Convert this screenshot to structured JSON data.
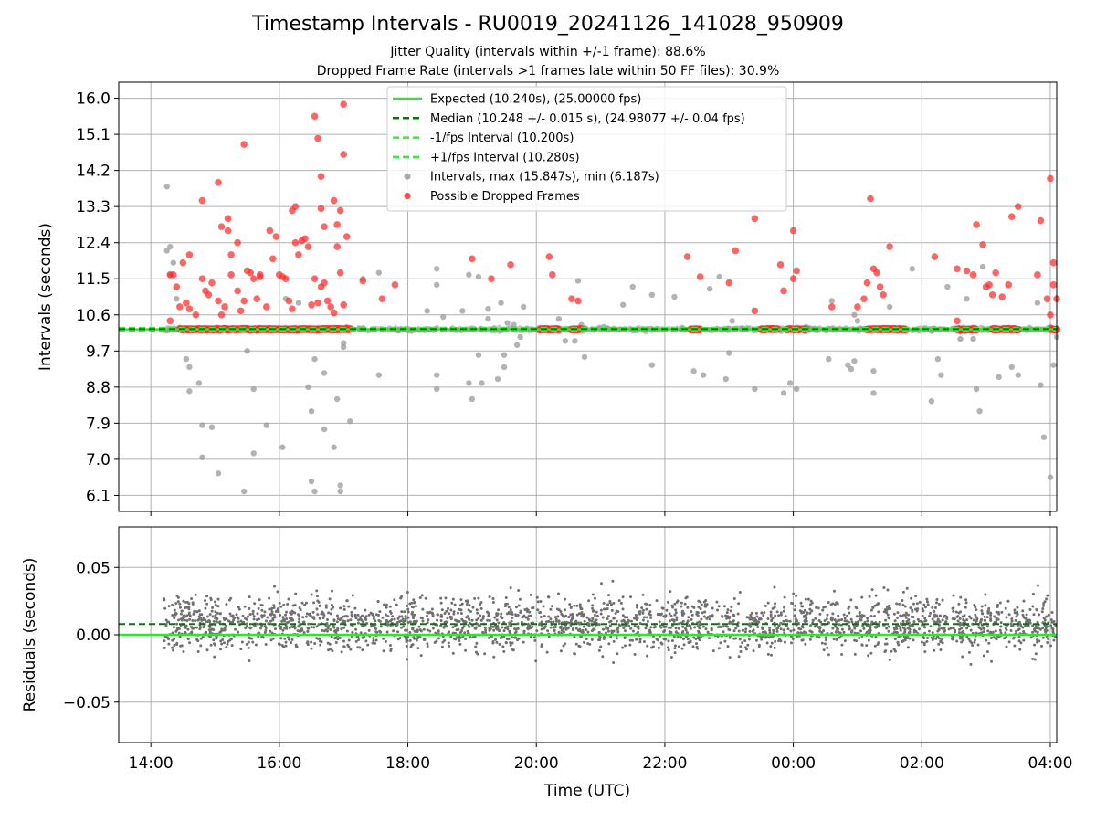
{
  "title": "Timestamp Intervals - RU0019_20241126_141028_950909",
  "subtitle_lines": [
    "Jitter Quality (intervals within +/-1 frame): 88.6%",
    "Dropped Frame Rate (intervals >1 frames late within 50 FF files): 30.9%"
  ],
  "colors": {
    "expected": "#22ee22",
    "median": "#107010",
    "interval_band": "#33ee33",
    "intervals": "#999999",
    "dropped": "#ff2a2a",
    "residuals": "#707070",
    "grid": "#b0b0b0"
  },
  "chart_data": [
    {
      "type": "scatter",
      "name": "intervals-panel",
      "ylabel": "Intervals (seconds)",
      "xlabel": "",
      "x_unit": "hours since 00:00 UTC 2024-11-26 (axis shows clock time)",
      "xlim": [
        13.5,
        28.1
      ],
      "ylim": [
        5.7,
        16.4
      ],
      "yticks": [
        "6.1",
        "7.0",
        "7.9",
        "8.8",
        "9.7",
        "10.6",
        "11.5",
        "12.4",
        "13.3",
        "14.2",
        "15.1",
        "16.0"
      ],
      "grid": true,
      "legend_position": "upper-center",
      "legend": [
        {
          "label": "Expected (10.240s), (25.00000 fps)",
          "style": "solid-line",
          "color": "#22ee22"
        },
        {
          "label": "Median (10.248 +/- 0.015 s), (24.98077 +/- 0.04 fps)",
          "style": "dashed-line",
          "color": "#107010"
        },
        {
          "label": "-1/fps Interval (10.200s)",
          "style": "dashed-line",
          "color": "#33ee33"
        },
        {
          "label": "+1/fps Interval (10.280s)",
          "style": "dashed-line",
          "color": "#33ee33"
        },
        {
          "label": "Intervals, max (15.847s), min (6.187s)",
          "style": "marker",
          "color": "#999999"
        },
        {
          "label": "Possible Dropped Frames",
          "style": "marker",
          "color": "#ff2a2a"
        }
      ],
      "lines": {
        "expected": 10.24,
        "median": 10.248,
        "minus_fps": 10.2,
        "plus_fps": 10.28
      },
      "dropped_frames": [
        [
          14.3,
          11.6
        ],
        [
          14.35,
          11.6
        ],
        [
          14.4,
          11.3
        ],
        [
          14.45,
          10.8
        ],
        [
          14.5,
          11.9
        ],
        [
          14.55,
          10.9
        ],
        [
          14.6,
          10.75
        ],
        [
          14.7,
          10.6
        ],
        [
          14.8,
          13.45
        ],
        [
          14.8,
          11.5
        ],
        [
          14.85,
          11.2
        ],
        [
          14.9,
          11.1
        ],
        [
          14.95,
          11.4
        ],
        [
          15.05,
          10.95
        ],
        [
          15.1,
          10.6
        ],
        [
          15.15,
          10.8
        ],
        [
          15.2,
          12.7
        ],
        [
          15.1,
          12.8
        ],
        [
          15.25,
          11.6
        ],
        [
          15.35,
          11.2
        ],
        [
          15.4,
          10.7
        ],
        [
          15.45,
          10.95
        ],
        [
          15.5,
          11.7
        ],
        [
          15.55,
          11.65
        ],
        [
          15.6,
          11.5
        ],
        [
          15.65,
          11.0
        ],
        [
          15.7,
          11.6
        ],
        [
          15.8,
          10.8
        ],
        [
          15.85,
          12.7
        ],
        [
          15.9,
          12.0
        ],
        [
          15.95,
          12.55
        ],
        [
          16.0,
          11.6
        ],
        [
          16.05,
          11.55
        ],
        [
          16.1,
          11.5
        ],
        [
          16.15,
          10.95
        ],
        [
          16.2,
          10.75
        ],
        [
          16.25,
          12.4
        ],
        [
          16.3,
          12.1
        ],
        [
          16.35,
          12.45
        ],
        [
          16.4,
          12.5
        ],
        [
          16.45,
          12.3
        ],
        [
          16.5,
          10.85
        ],
        [
          16.55,
          11.5
        ],
        [
          16.6,
          10.9
        ],
        [
          16.65,
          11.3
        ],
        [
          16.7,
          11.4
        ],
        [
          16.75,
          10.95
        ],
        [
          16.8,
          10.8
        ],
        [
          16.85,
          10.65
        ],
        [
          16.9,
          12.85
        ],
        [
          16.95,
          13.2
        ],
        [
          17.0,
          10.85
        ],
        [
          16.55,
          15.55
        ],
        [
          16.6,
          15.0
        ],
        [
          16.65,
          14.05
        ],
        [
          17.0,
          15.85
        ],
        [
          17.0,
          14.6
        ],
        [
          15.45,
          14.85
        ],
        [
          15.05,
          13.9
        ],
        [
          15.25,
          12.1
        ],
        [
          15.35,
          12.4
        ],
        [
          15.7,
          11.55
        ],
        [
          16.2,
          13.2
        ],
        [
          16.65,
          13.25
        ],
        [
          16.85,
          13.45
        ],
        [
          16.9,
          12.3
        ],
        [
          17.05,
          12.55
        ],
        [
          16.95,
          11.65
        ],
        [
          14.3,
          10.45
        ],
        [
          14.6,
          12.1
        ],
        [
          15.2,
          13.0
        ],
        [
          16.25,
          13.3
        ],
        [
          16.7,
          12.8
        ],
        [
          17.3,
          11.45
        ],
        [
          17.6,
          11.0
        ],
        [
          17.8,
          11.35
        ],
        [
          19.0,
          12.0
        ],
        [
          19.3,
          11.5
        ],
        [
          19.6,
          11.85
        ],
        [
          20.2,
          12.05
        ],
        [
          20.25,
          11.6
        ],
        [
          20.55,
          11.0
        ],
        [
          20.65,
          10.95
        ],
        [
          22.35,
          12.05
        ],
        [
          22.55,
          11.55
        ],
        [
          23.0,
          11.4
        ],
        [
          23.1,
          12.2
        ],
        [
          23.4,
          13.0
        ],
        [
          23.4,
          10.7
        ],
        [
          23.8,
          11.85
        ],
        [
          23.85,
          11.2
        ],
        [
          24.0,
          11.5
        ],
        [
          24.0,
          12.7
        ],
        [
          24.05,
          11.7
        ],
        [
          24.6,
          10.8
        ],
        [
          25.0,
          10.8
        ],
        [
          25.1,
          11.0
        ],
        [
          25.15,
          11.4
        ],
        [
          25.25,
          11.75
        ],
        [
          25.3,
          11.65
        ],
        [
          25.35,
          11.3
        ],
        [
          25.4,
          11.1
        ],
        [
          25.5,
          12.3
        ],
        [
          25.2,
          13.5
        ],
        [
          26.2,
          12.05
        ],
        [
          26.55,
          10.45
        ],
        [
          26.6,
          10.2
        ],
        [
          26.55,
          11.75
        ],
        [
          26.7,
          11.7
        ],
        [
          26.8,
          11.6
        ],
        [
          26.95,
          12.35
        ],
        [
          26.85,
          12.85
        ],
        [
          27.0,
          11.3
        ],
        [
          27.05,
          11.35
        ],
        [
          27.1,
          11.1
        ],
        [
          27.15,
          11.65
        ],
        [
          27.25,
          11.05
        ],
        [
          27.35,
          11.35
        ],
        [
          27.4,
          13.05
        ],
        [
          27.5,
          13.3
        ],
        [
          27.8,
          11.6
        ],
        [
          27.95,
          11.0
        ],
        [
          28.0,
          10.6
        ],
        [
          28.05,
          11.35
        ],
        [
          28.1,
          11.0
        ],
        [
          28.0,
          14.0
        ],
        [
          28.05,
          11.9
        ],
        [
          27.85,
          12.95
        ]
      ],
      "dropped_baseline_segments": [
        [
          14.45,
          17.1
        ],
        [
          20.05,
          20.35
        ],
        [
          20.55,
          20.7
        ],
        [
          22.4,
          22.55
        ],
        [
          23.5,
          23.75
        ],
        [
          23.9,
          24.1
        ],
        [
          24.15,
          24.2
        ],
        [
          25.15,
          25.75
        ],
        [
          26.55,
          26.85
        ],
        [
          27.1,
          27.2
        ],
        [
          27.25,
          27.5
        ],
        [
          28.0,
          28.1
        ]
      ],
      "dropped_baseline_value": 10.24,
      "intervals_outliers": [
        [
          14.25,
          13.8
        ],
        [
          14.25,
          12.2
        ],
        [
          14.3,
          12.3
        ],
        [
          14.35,
          11.9
        ],
        [
          14.3,
          11.6
        ],
        [
          14.4,
          11.0
        ],
        [
          14.55,
          9.5
        ],
        [
          14.6,
          9.3
        ],
        [
          14.6,
          8.7
        ],
        [
          14.75,
          8.9
        ],
        [
          14.8,
          7.85
        ],
        [
          14.8,
          7.05
        ],
        [
          14.95,
          7.8
        ],
        [
          15.05,
          6.65
        ],
        [
          15.45,
          6.2
        ],
        [
          15.5,
          9.7
        ],
        [
          15.6,
          8.75
        ],
        [
          15.6,
          7.15
        ],
        [
          15.8,
          7.85
        ],
        [
          16.05,
          7.3
        ],
        [
          16.1,
          11.0
        ],
        [
          16.3,
          10.9
        ],
        [
          16.45,
          8.8
        ],
        [
          16.5,
          8.2
        ],
        [
          16.5,
          6.45
        ],
        [
          16.55,
          6.2
        ],
        [
          16.55,
          9.5
        ],
        [
          16.7,
          9.15
        ],
        [
          16.7,
          7.75
        ],
        [
          16.85,
          7.3
        ],
        [
          16.9,
          8.5
        ],
        [
          16.95,
          6.35
        ],
        [
          16.95,
          6.2
        ],
        [
          17.0,
          9.9
        ],
        [
          17.0,
          9.8
        ],
        [
          17.1,
          7.95
        ],
        [
          17.3,
          11.5
        ],
        [
          17.55,
          11.65
        ],
        [
          17.55,
          9.1
        ],
        [
          18.3,
          10.7
        ],
        [
          18.45,
          11.75
        ],
        [
          18.45,
          11.35
        ],
        [
          18.45,
          9.1
        ],
        [
          18.45,
          8.75
        ],
        [
          18.55,
          10.55
        ],
        [
          18.85,
          10.7
        ],
        [
          18.95,
          11.6
        ],
        [
          18.95,
          8.9
        ],
        [
          19.0,
          8.5
        ],
        [
          19.1,
          11.55
        ],
        [
          19.1,
          9.6
        ],
        [
          19.15,
          8.9
        ],
        [
          19.25,
          10.75
        ],
        [
          19.25,
          10.5
        ],
        [
          19.4,
          9.0
        ],
        [
          19.5,
          9.6
        ],
        [
          19.5,
          9.3
        ],
        [
          19.45,
          10.9
        ],
        [
          19.55,
          10.4
        ],
        [
          19.65,
          10.35
        ],
        [
          19.7,
          9.85
        ],
        [
          19.75,
          10.05
        ],
        [
          19.8,
          10.8
        ],
        [
          20.35,
          10.5
        ],
        [
          20.45,
          9.95
        ],
        [
          20.6,
          9.95
        ],
        [
          20.65,
          11.45
        ],
        [
          20.7,
          10.35
        ],
        [
          20.75,
          9.55
        ],
        [
          21.05,
          10.3
        ],
        [
          21.35,
          10.85
        ],
        [
          21.5,
          11.3
        ],
        [
          21.8,
          11.1
        ],
        [
          21.8,
          9.35
        ],
        [
          22.15,
          11.05
        ],
        [
          22.45,
          10.2
        ],
        [
          22.45,
          9.2
        ],
        [
          22.6,
          9.1
        ],
        [
          22.7,
          11.25
        ],
        [
          22.85,
          11.55
        ],
        [
          22.95,
          9.0
        ],
        [
          23.0,
          9.65
        ],
        [
          23.05,
          10.45
        ],
        [
          23.4,
          8.75
        ],
        [
          23.85,
          8.65
        ],
        [
          23.95,
          8.9
        ],
        [
          24.05,
          8.75
        ],
        [
          24.2,
          10.3
        ],
        [
          24.55,
          9.5
        ],
        [
          24.6,
          10.95
        ],
        [
          24.85,
          9.35
        ],
        [
          24.9,
          9.25
        ],
        [
          24.95,
          9.45
        ],
        [
          24.95,
          10.6
        ],
        [
          25.0,
          10.45
        ],
        [
          25.25,
          9.2
        ],
        [
          25.25,
          8.65
        ],
        [
          25.5,
          10.8
        ],
        [
          25.85,
          11.75
        ],
        [
          26.15,
          8.45
        ],
        [
          26.15,
          10.2
        ],
        [
          26.25,
          9.5
        ],
        [
          26.3,
          9.1
        ],
        [
          26.4,
          11.3
        ],
        [
          26.6,
          10.0
        ],
        [
          26.7,
          11.0
        ],
        [
          26.8,
          10.0
        ],
        [
          26.85,
          8.75
        ],
        [
          26.9,
          8.2
        ],
        [
          26.95,
          11.8
        ],
        [
          27.2,
          9.05
        ],
        [
          27.4,
          9.3
        ],
        [
          27.5,
          9.1
        ],
        [
          27.8,
          10.9
        ],
        [
          27.85,
          8.85
        ],
        [
          27.9,
          7.55
        ],
        [
          28.0,
          6.55
        ],
        [
          28.05,
          9.35
        ],
        [
          28.0,
          10.3
        ],
        [
          28.1,
          10.05
        ]
      ],
      "intervals_band_x": [
        14.2,
        28.1
      ]
    },
    {
      "type": "scatter",
      "name": "residuals-panel",
      "ylabel": "Residuals (seconds)",
      "xlabel": "Time (UTC)",
      "xlim": [
        13.5,
        28.1
      ],
      "ylim": [
        -0.08,
        0.08
      ],
      "yticks": [
        "−0.05",
        "0.00",
        "0.05"
      ],
      "ytick_values": [
        -0.05,
        0.0,
        0.05
      ],
      "xticks": [
        "14:00",
        "16:00",
        "18:00",
        "20:00",
        "22:00",
        "00:00",
        "02:00",
        "04:00"
      ],
      "xtick_values": [
        14,
        16,
        18,
        20,
        22,
        24,
        26,
        28
      ],
      "grid": true,
      "lines": {
        "expected": 0.0,
        "median": 0.008
      },
      "residuals_range_x": [
        14.2,
        28.1
      ],
      "residuals_spread": 0.014
    }
  ]
}
